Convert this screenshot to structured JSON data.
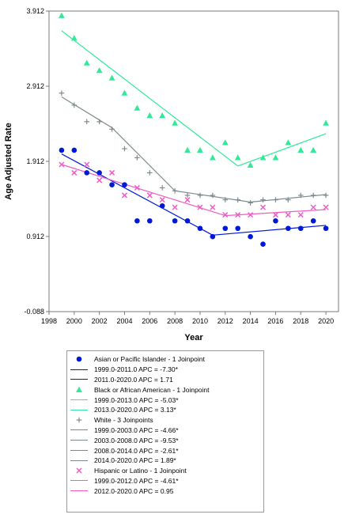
{
  "chart_data": {
    "type": "scatter",
    "xlabel": "Year",
    "ylabel": "Age Adjusted Rate",
    "xlim": [
      1998,
      2021
    ],
    "ylim": [
      -0.088,
      3.912
    ],
    "xticks": [
      "1998",
      "2000",
      "2002",
      "2004",
      "2006",
      "2008",
      "2010",
      "2012",
      "2014",
      "2016",
      "2018",
      "2020"
    ],
    "yticks": [
      "-0.088",
      "0.912",
      "1.912",
      "2.912",
      "3.912"
    ],
    "x": [
      1999,
      2000,
      2001,
      2002,
      2003,
      2004,
      2005,
      2006,
      2007,
      2008,
      2009,
      2010,
      2011,
      2012,
      2013,
      2014,
      2015,
      2016,
      2017,
      2018,
      2019,
      2020
    ],
    "series": [
      {
        "name": "Asian or Pacific Islander",
        "color": "#0019d6",
        "marker": "circle",
        "values": [
          2.06,
          2.06,
          1.76,
          1.76,
          1.6,
          1.6,
          1.12,
          1.12,
          1.32,
          1.12,
          1.12,
          1.02,
          0.91,
          1.02,
          1.02,
          0.91,
          0.81,
          1.12,
          1.02,
          1.02,
          1.12,
          1.02
        ],
        "fit": [
          {
            "x": [
              1999,
              2011
            ],
            "y": [
              2.01,
              0.93
            ]
          },
          {
            "x": [
              2011,
              2020
            ],
            "y": [
              0.93,
              1.06
            ]
          }
        ]
      },
      {
        "name": "Black or African American",
        "color": "#34e89a",
        "marker": "triangle",
        "values": [
          3.85,
          3.55,
          3.22,
          3.12,
          3.02,
          2.82,
          2.62,
          2.52,
          2.52,
          2.42,
          2.06,
          2.06,
          1.96,
          2.16,
          1.96,
          1.86,
          1.96,
          1.96,
          2.16,
          2.06,
          2.06,
          2.42
        ],
        "fit": [
          {
            "x": [
              1999,
              2013
            ],
            "y": [
              3.65,
              1.85
            ]
          },
          {
            "x": [
              2013,
              2020
            ],
            "y": [
              1.85,
              2.28
            ]
          }
        ]
      },
      {
        "name": "White",
        "color": "#7e8a8d",
        "marker": "plus",
        "values": [
          2.82,
          2.66,
          2.44,
          2.44,
          2.34,
          2.08,
          1.96,
          1.76,
          1.56,
          1.52,
          1.46,
          1.46,
          1.46,
          1.4,
          1.4,
          1.36,
          1.4,
          1.4,
          1.4,
          1.46,
          1.46,
          1.46
        ],
        "fit": [
          {
            "x": [
              1999,
              2003
            ],
            "y": [
              2.77,
              2.36
            ]
          },
          {
            "x": [
              2003,
              2008
            ],
            "y": [
              2.36,
              1.52
            ]
          },
          {
            "x": [
              2008,
              2014
            ],
            "y": [
              1.52,
              1.37
            ]
          },
          {
            "x": [
              2014,
              2020
            ],
            "y": [
              1.37,
              1.47
            ]
          }
        ]
      },
      {
        "name": "Hispanic or Latino",
        "color": "#f25bc5",
        "marker": "x",
        "values": [
          1.87,
          1.76,
          1.87,
          1.66,
          1.76,
          1.46,
          1.56,
          1.46,
          1.4,
          1.3,
          1.4,
          1.3,
          1.3,
          1.2,
          1.2,
          1.2,
          1.3,
          1.2,
          1.2,
          1.2,
          1.3,
          1.3
        ],
        "fit": [
          {
            "x": [
              1999,
              2012
            ],
            "y": [
              1.87,
              1.19
            ]
          },
          {
            "x": [
              2012,
              2020
            ],
            "y": [
              1.19,
              1.27
            ]
          }
        ]
      }
    ]
  },
  "legend": [
    {
      "kind": "marker",
      "marker": "circle",
      "color": "#0019d6",
      "label": "Asian or Pacific Islander - 1 Joinpoint"
    },
    {
      "kind": "line",
      "color": "#0019d6",
      "label": "1999.0-2011.0 APC = -7.30*"
    },
    {
      "kind": "line",
      "color": "#0019d6",
      "label": "2011.0-2020.0 APC = 1.71"
    },
    {
      "kind": "marker",
      "marker": "triangle",
      "color": "#34e89a",
      "label": "Black or African American - 1 Joinpoint"
    },
    {
      "kind": "line",
      "color": "#34e89a",
      "label": "1999.0-2013.0 APC = -5.03*"
    },
    {
      "kind": "line",
      "color": "#34e89a",
      "label": "2013.0-2020.0 APC = 3.13*"
    },
    {
      "kind": "marker",
      "marker": "plus",
      "color": "#7e8a8d",
      "label": "White - 3 Joinpoints"
    },
    {
      "kind": "line",
      "color": "#7e8a8d",
      "label": "1999.0-2003.0 APC = -4.66*"
    },
    {
      "kind": "line",
      "color": "#7e8a8d",
      "label": "2003.0-2008.0 APC = -9.53*"
    },
    {
      "kind": "line",
      "color": "#7e8a8d",
      "label": "2008.0-2014.0 APC = -2.61*"
    },
    {
      "kind": "line",
      "color": "#7e8a8d",
      "label": "2014.0-2020.0 APC = 1.89*"
    },
    {
      "kind": "marker",
      "marker": "x",
      "color": "#f25bc5",
      "label": "Hispanic or Latino - 1 Joinpoint"
    },
    {
      "kind": "line",
      "color": "#f25bc5",
      "label": "1999.0-2012.0 APC = -4.61*"
    },
    {
      "kind": "line",
      "color": "#f25bc5",
      "label": "2012.0-2020.0 APC = 0.95"
    }
  ]
}
